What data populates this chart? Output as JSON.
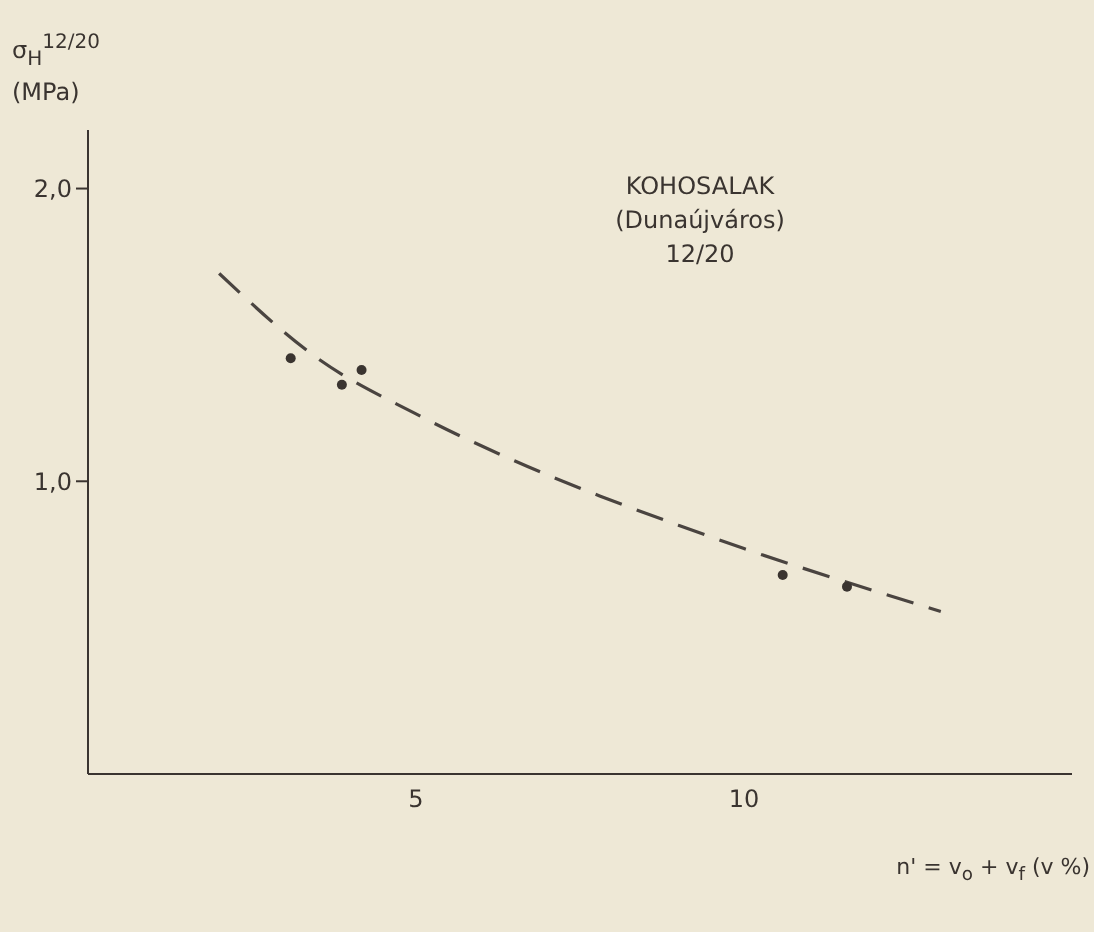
{
  "chart_data": {
    "type": "scatter",
    "ylabel": "σ$_{H}$$^{12/20}$ (MPa)",
    "xlabel": "n' = v$_{o}$ + v$_{f}$ (v %)",
    "annotations": [
      "KOHOSALAK",
      "(Dunaújváros)",
      "12/20"
    ],
    "xlim": [
      0,
      15
    ],
    "xticks": [
      5,
      10
    ],
    "ylim": [
      0,
      2.2
    ],
    "yticks": [
      {
        "value": 1,
        "label": "1,0"
      },
      {
        "value": 2,
        "label": "2,0"
      }
    ],
    "series": [
      {
        "color": "#3a3430",
        "marker": "circle",
        "x": [
          3.09,
          3.87,
          4.17,
          10.59,
          11.57
        ],
        "values": [
          1.42,
          1.33,
          1.38,
          0.68,
          0.64
        ]
      },
      {
        "type": "line",
        "color": "#4a4440",
        "marker": "none",
        "line_style": "dashed",
        "x": [
          2.0,
          3.5,
          5.0,
          6.5,
          7.8,
          9.0,
          10.0,
          11.5,
          13.0
        ],
        "values": [
          1.71,
          1.42,
          1.23,
          1.07,
          0.95,
          0.85,
          0.77,
          0.66,
          0.555
        ]
      }
    ]
  }
}
